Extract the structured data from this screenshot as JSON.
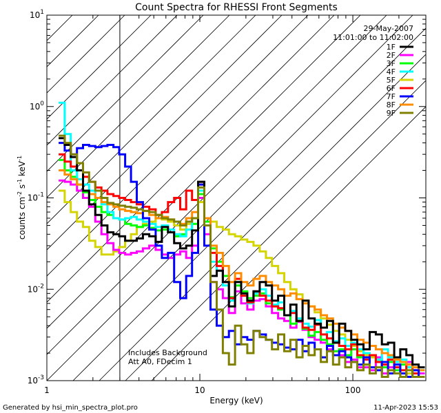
{
  "chart_data": {
    "type": "line",
    "title": "Count Spectra for RHESSI Front Segments",
    "xlabel": "Energy (keV)",
    "ylabel": "counts cm",
    "ylabel_sup_1": "-2",
    "ylabel_mid": " s",
    "ylabel_sup_2": "-1",
    "ylabel_end": " keV",
    "ylabel_sup_3": "-1",
    "x_scale": "log",
    "y_scale": "log",
    "xlim": [
      1,
      300
    ],
    "ylim": [
      0.001,
      10
    ],
    "x_ticks": [
      {
        "value": 1,
        "label": "1"
      },
      {
        "value": 10,
        "label": "10"
      },
      {
        "value": 100,
        "label": "100"
      }
    ],
    "y_ticks": [
      {
        "value": 0.001,
        "base": "10",
        "exp": "-3"
      },
      {
        "value": 0.01,
        "base": "10",
        "exp": "-2"
      },
      {
        "value": 0.1,
        "base": "10",
        "exp": "-1"
      },
      {
        "value": 1,
        "base": "10",
        "exp": "0"
      },
      {
        "value": 10,
        "base": "10",
        "exp": "1"
      }
    ],
    "excluded_region": {
      "from": 1,
      "to": 3
    },
    "date": "29-May-2007",
    "time_range": "11:01:00 to 11:02:00",
    "annotation_lines": [
      "Includes Background",
      "Att A0, FDecim 1"
    ],
    "legend_position": "top-right",
    "energies": [
      1.25,
      1.37,
      1.5,
      1.65,
      1.8,
      1.98,
      2.17,
      2.38,
      2.6,
      2.85,
      3.1,
      3.4,
      3.7,
      4.05,
      4.45,
      4.9,
      5.4,
      5.9,
      6.5,
      7.1,
      7.8,
      8.5,
      9.3,
      10.2,
      11.2,
      12.3,
      13.5,
      14.8,
      16.2,
      17.8,
      19.5,
      21.4,
      23.5,
      25.8,
      28.3,
      31,
      34,
      37.3,
      40.9,
      44.8,
      49.1,
      53.8,
      59,
      64.7,
      70.9,
      77.7,
      85.2,
      93.4,
      102,
      112,
      123,
      135,
      148,
      162,
      178,
      195,
      214,
      234,
      257,
      282
    ],
    "series": [
      {
        "name": "1F",
        "color": "#000000",
        "values": [
          0.45,
          0.38,
          0.28,
          0.2,
          0.12,
          0.085,
          0.065,
          0.05,
          0.042,
          0.04,
          0.038,
          0.034,
          0.034,
          0.036,
          0.04,
          0.038,
          0.033,
          0.048,
          0.042,
          0.032,
          0.028,
          0.03,
          0.044,
          0.15,
          0.05,
          0.014,
          0.016,
          0.012,
          0.0065,
          0.012,
          0.009,
          0.0075,
          0.0095,
          0.012,
          0.011,
          0.0075,
          0.0085,
          0.0052,
          0.0068,
          0.0045,
          0.0075,
          0.0048,
          0.0042,
          0.0038,
          0.0045,
          0.0026,
          0.0042,
          0.0035,
          0.0028,
          0.0025,
          0.0022,
          0.0034,
          0.0032,
          0.0025,
          0.0026,
          0.0018,
          0.0022,
          0.0019,
          0.0015,
          0.0014
        ]
      },
      {
        "name": "2F",
        "color": "#ff00ff",
        "values": [
          0.155,
          0.15,
          0.14,
          0.12,
          0.1,
          0.08,
          0.055,
          0.04,
          0.032,
          0.027,
          0.025,
          0.024,
          0.025,
          0.026,
          0.028,
          0.03,
          0.027,
          0.024,
          0.022,
          0.024,
          0.026,
          0.022,
          0.03,
          0.1,
          0.04,
          0.012,
          0.01,
          0.008,
          0.0055,
          0.0095,
          0.007,
          0.006,
          0.0075,
          0.0078,
          0.0065,
          0.0055,
          0.0048,
          0.0045,
          0.0038,
          0.0044,
          0.0036,
          0.003,
          0.0028,
          0.0026,
          0.0022,
          0.0021,
          0.0019,
          0.0016,
          0.0017,
          0.0014,
          0.0014,
          0.0013,
          0.0018,
          0.0012,
          0.0014,
          0.0015,
          0.0011,
          0.0016,
          0.0013,
          0.0012
        ]
      },
      {
        "name": "3F",
        "color": "#00ff00",
        "values": [
          0.26,
          0.2,
          0.17,
          0.14,
          0.115,
          0.095,
          0.08,
          0.07,
          0.065,
          0.06,
          0.058,
          0.052,
          0.05,
          0.048,
          0.05,
          0.047,
          0.044,
          0.045,
          0.042,
          0.038,
          0.04,
          0.045,
          0.052,
          0.11,
          0.055,
          0.028,
          0.02,
          0.014,
          0.0082,
          0.011,
          0.0095,
          0.008,
          0.0085,
          0.009,
          0.007,
          0.0065,
          0.006,
          0.0052,
          0.0042,
          0.0048,
          0.0037,
          0.0031,
          0.0034,
          0.0028,
          0.0025,
          0.0021,
          0.0022,
          0.0019,
          0.0022,
          0.0018,
          0.0015,
          0.0019,
          0.0017,
          0.0014,
          0.0016,
          0.0013,
          0.0015,
          0.0014,
          0.0012,
          0.0013
        ]
      },
      {
        "name": "4F",
        "color": "#00ffff",
        "values": [
          1.1,
          0.5,
          0.2,
          0.16,
          0.14,
          0.12,
          0.1,
          0.085,
          0.07,
          0.06,
          0.058,
          0.06,
          0.062,
          0.058,
          0.055,
          0.052,
          0.048,
          0.05,
          0.045,
          0.04,
          0.038,
          0.045,
          0.06,
          0.12,
          0.05,
          0.02,
          0.016,
          0.011,
          0.0075,
          0.012,
          0.0085,
          0.007,
          0.009,
          0.01,
          0.0085,
          0.0068,
          0.0072,
          0.0052,
          0.0058,
          0.0048,
          0.0042,
          0.0039,
          0.0046,
          0.0032,
          0.0034,
          0.0027,
          0.0029,
          0.0024,
          0.0026,
          0.0022,
          0.002,
          0.0019,
          0.0017,
          0.0022,
          0.0018,
          0.0016,
          0.0017,
          0.0014,
          0.0012,
          0.0013
        ]
      },
      {
        "name": "5F",
        "color": "#d4d400",
        "values": [
          0.12,
          0.09,
          0.07,
          0.055,
          0.048,
          0.034,
          0.029,
          0.024,
          0.024,
          0.026,
          0.029,
          0.034,
          0.04,
          0.048,
          0.052,
          0.055,
          0.06,
          0.058,
          0.055,
          0.05,
          0.045,
          0.052,
          0.06,
          0.09,
          0.055,
          0.055,
          0.048,
          0.045,
          0.04,
          0.038,
          0.035,
          0.033,
          0.03,
          0.026,
          0.022,
          0.018,
          0.015,
          0.012,
          0.01,
          0.0088,
          0.0075,
          0.0065,
          0.0056,
          0.0048,
          0.0041,
          0.0035,
          0.0032,
          0.0028,
          0.0024,
          0.0021,
          0.0019,
          0.0018,
          0.0016,
          0.0015,
          0.0014,
          0.0012,
          0.0011,
          0.0012,
          0.0011,
          0.0011
        ]
      },
      {
        "name": "6F",
        "color": "#ff0000",
        "values": [
          0.3,
          0.25,
          0.22,
          0.2,
          0.17,
          0.15,
          0.13,
          0.12,
          0.11,
          0.105,
          0.1,
          0.095,
          0.09,
          0.085,
          0.08,
          0.075,
          0.065,
          0.07,
          0.09,
          0.1,
          0.075,
          0.12,
          0.095,
          0.14,
          0.06,
          0.025,
          0.018,
          0.012,
          0.008,
          0.013,
          0.0085,
          0.0072,
          0.0095,
          0.0085,
          0.0075,
          0.0065,
          0.0062,
          0.0052,
          0.0055,
          0.0045,
          0.0038,
          0.0036,
          0.0041,
          0.0032,
          0.0029,
          0.0026,
          0.0024,
          0.0022,
          0.0025,
          0.0019,
          0.0017,
          0.0019,
          0.0016,
          0.0015,
          0.0017,
          0.0014,
          0.0013,
          0.0015,
          0.0012,
          0.0011
        ]
      },
      {
        "name": "7F",
        "color": "#0000ff",
        "values": [
          0.4,
          0.33,
          0.3,
          0.35,
          0.38,
          0.37,
          0.36,
          0.37,
          0.38,
          0.36,
          0.3,
          0.22,
          0.15,
          0.09,
          0.06,
          0.045,
          0.03,
          0.022,
          0.025,
          0.012,
          0.008,
          0.014,
          0.025,
          0.14,
          0.03,
          0.006,
          0.004,
          0.003,
          0.0035,
          0.0025,
          0.003,
          0.0028,
          0.0035,
          0.0032,
          0.0028,
          0.0026,
          0.0025,
          0.0023,
          0.0022,
          0.0028,
          0.0021,
          0.0026,
          0.0022,
          0.0018,
          0.0024,
          0.0019,
          0.0021,
          0.0018,
          0.0016,
          0.0015,
          0.0018,
          0.0014,
          0.0013,
          0.0016,
          0.0012,
          0.0015,
          0.0012,
          0.0011,
          0.0013,
          0.0011
        ]
      },
      {
        "name": "8F",
        "color": "#ff8c00",
        "values": [
          0.2,
          0.18,
          0.16,
          0.14,
          0.12,
          0.11,
          0.1,
          0.09,
          0.085,
          0.08,
          0.075,
          0.072,
          0.07,
          0.068,
          0.072,
          0.065,
          0.06,
          0.062,
          0.058,
          0.055,
          0.052,
          0.06,
          0.07,
          0.15,
          0.06,
          0.03,
          0.025,
          0.018,
          0.012,
          0.015,
          0.012,
          0.011,
          0.013,
          0.014,
          0.012,
          0.011,
          0.01,
          0.0085,
          0.009,
          0.0078,
          0.007,
          0.0065,
          0.006,
          0.0052,
          0.0048,
          0.0042,
          0.0038,
          0.0035,
          0.0032,
          0.0028,
          0.0026,
          0.0024,
          0.0022,
          0.002,
          0.0019,
          0.0017,
          0.0016,
          0.0015,
          0.0014,
          0.0013
        ]
      },
      {
        "name": "9F",
        "color": "#808000",
        "values": [
          0.48,
          0.4,
          0.3,
          0.24,
          0.19,
          0.15,
          0.12,
          0.1,
          0.088,
          0.085,
          0.082,
          0.08,
          0.078,
          0.075,
          0.072,
          0.07,
          0.065,
          0.06,
          0.058,
          0.055,
          0.05,
          0.055,
          0.06,
          0.13,
          0.05,
          0.012,
          0.006,
          0.002,
          0.0015,
          0.004,
          0.0025,
          0.002,
          0.0035,
          0.003,
          0.0028,
          0.0022,
          0.0032,
          0.0021,
          0.0028,
          0.0018,
          0.0024,
          0.0019,
          0.0022,
          0.0016,
          0.0021,
          0.0015,
          0.0018,
          0.0014,
          0.0016,
          0.0013,
          0.0015,
          0.0012,
          0.0014,
          0.0011,
          0.0013,
          0.0012,
          0.0011,
          0.0013,
          0.0011,
          0.0011
        ]
      }
    ]
  },
  "footer": {
    "generated_by": "Generated by hsi_min_spectra_plot.pro",
    "date": "11-Apr-2023 15:53"
  }
}
